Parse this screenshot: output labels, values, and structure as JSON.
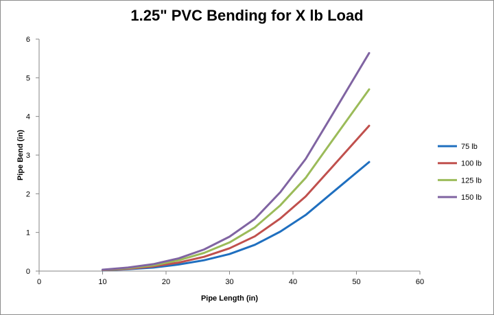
{
  "chart_data": {
    "type": "line",
    "title": "1.25\" PVC Bending for X lb Load",
    "xlabel": "Pipe Length (in)",
    "ylabel": "Pipe Bend (in)",
    "xlim": [
      0,
      60
    ],
    "ylim": [
      0,
      6
    ],
    "xticks": [
      0,
      10,
      20,
      30,
      40,
      50,
      60
    ],
    "yticks": [
      0,
      1,
      2,
      3,
      4,
      5,
      6
    ],
    "grid": false,
    "legend_position": "right",
    "x": [
      10,
      14,
      18,
      22,
      26,
      30,
      34,
      38,
      42,
      46,
      52
    ],
    "series": [
      {
        "name": "75 lb",
        "color": "#1f6fbf",
        "values": [
          0.02,
          0.05,
          0.09,
          0.17,
          0.28,
          0.44,
          0.68,
          1.02,
          1.45,
          2.0,
          2.82
        ]
      },
      {
        "name": "100 lb",
        "color": "#c0504d",
        "values": [
          0.025,
          0.06,
          0.12,
          0.22,
          0.37,
          0.59,
          0.9,
          1.36,
          1.93,
          2.66,
          3.76
        ]
      },
      {
        "name": "125 lb",
        "color": "#9bbb59",
        "values": [
          0.03,
          0.075,
          0.15,
          0.28,
          0.47,
          0.74,
          1.13,
          1.7,
          2.41,
          3.33,
          4.7
        ]
      },
      {
        "name": "150 lb",
        "color": "#8064a2",
        "values": [
          0.035,
          0.09,
          0.18,
          0.33,
          0.56,
          0.89,
          1.35,
          2.04,
          2.9,
          3.99,
          5.64
        ]
      }
    ]
  }
}
